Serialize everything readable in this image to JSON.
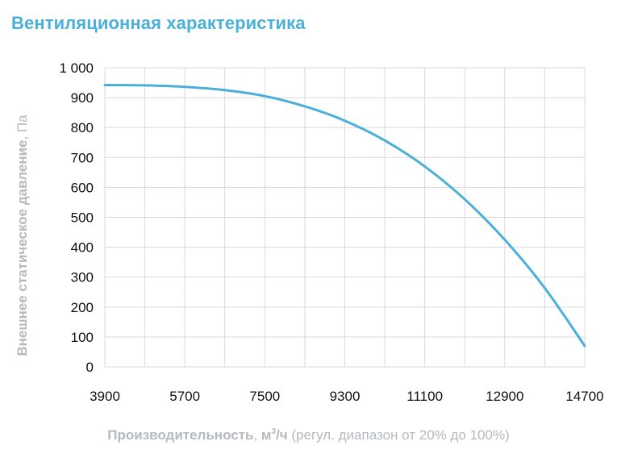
{
  "title": "Вентиляционная характеристика",
  "colors": {
    "accent": "#4ab0d9",
    "grid": "#d9d9d9",
    "axis_text": "#b5b8bd"
  },
  "axes": {
    "ylabel_main": "Внешнее статическое давление",
    "ylabel_sep": ", ",
    "ylabel_unit": "Па",
    "xlabel_main": "Производительность",
    "xlabel_sep": ", ",
    "xlabel_unit_pre": "м",
    "xlabel_unit_sup": "3",
    "xlabel_unit_post": "/ч",
    "xlabel_note": " (регул. диапазон от 20% до 100%)"
  },
  "chart_data": {
    "type": "line",
    "title": "Вентиляционная характеристика",
    "xlabel": "Производительность, м3/ч (регул. диапазон от 20% до 100%)",
    "ylabel": "Внешнее статическое давление, Па",
    "xlim": [
      3900,
      14700
    ],
    "ylim": [
      0,
      1000
    ],
    "x_ticks": [
      3900,
      5700,
      7500,
      9300,
      11100,
      12900,
      14700
    ],
    "x_tick_labels": [
      "3900",
      "5700",
      "7500",
      "9300",
      "11100",
      "12900",
      "14700"
    ],
    "y_ticks": [
      0,
      100,
      200,
      300,
      400,
      500,
      600,
      700,
      800,
      900,
      1000
    ],
    "y_tick_labels": [
      "0",
      "100",
      "200",
      "300",
      "400",
      "500",
      "600",
      "700",
      "800",
      "900",
      "1 000"
    ],
    "grid": true,
    "legend": false,
    "series": [
      {
        "color": "#4ab0d9",
        "x": [
          3900,
          4800,
          5700,
          6600,
          7500,
          8400,
          9300,
          10200,
          11100,
          12000,
          12900,
          13800,
          14700
        ],
        "y": [
          942,
          941,
          936,
          925,
          905,
          871,
          823,
          757,
          670,
          560,
          425,
          264,
          70
        ]
      }
    ]
  }
}
